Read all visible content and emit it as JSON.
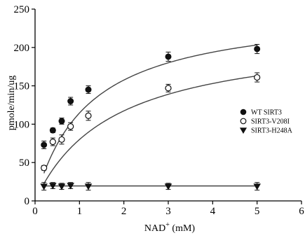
{
  "chart_data": {
    "type": "scatter",
    "xlabel": "NAD",
    "xlabel_superscript": "+",
    "xlabel_unit": " (mM)",
    "ylabel": "pmole/min/ug",
    "xlim": [
      0,
      6
    ],
    "ylim": [
      0,
      250
    ],
    "xticks": [
      "0",
      "1",
      "2",
      "3",
      "4",
      "5",
      "6"
    ],
    "yticks": [
      "0",
      "50",
      "100",
      "150",
      "200",
      "250"
    ],
    "grid": false,
    "legend_position": "right",
    "series": [
      {
        "name": "WT SIRT3",
        "marker": "filled-circle",
        "x": [
          0.2,
          0.4,
          0.6,
          0.8,
          1.2,
          3,
          5
        ],
        "y": [
          73,
          92,
          104,
          130,
          145,
          188,
          198
        ],
        "err": [
          5,
          3,
          4,
          5,
          5,
          6,
          6
        ],
        "fit_vmax": 252,
        "fit_km": 1.2
      },
      {
        "name": "SIRT3-V208I",
        "marker": "open-circle",
        "x": [
          0.2,
          0.4,
          0.6,
          0.8,
          1.2,
          3,
          5
        ],
        "y": [
          43,
          77,
          80,
          97,
          111,
          147,
          161
        ],
        "err": [
          3,
          5,
          6,
          5,
          6,
          5,
          6
        ],
        "fit_vmax": 220,
        "fit_km": 1.75,
        "fit_x_start": 0.2
      },
      {
        "name": "SIRT3-H248A",
        "marker": "filled-triangle-down",
        "x": [
          0.2,
          0.4,
          0.6,
          0.8,
          1.2,
          3,
          5
        ],
        "y": [
          19,
          20,
          19,
          20,
          19,
          19,
          19
        ],
        "err": [
          5,
          4,
          4,
          4,
          5,
          4,
          5
        ],
        "fit_constant": 19.5
      }
    ]
  }
}
